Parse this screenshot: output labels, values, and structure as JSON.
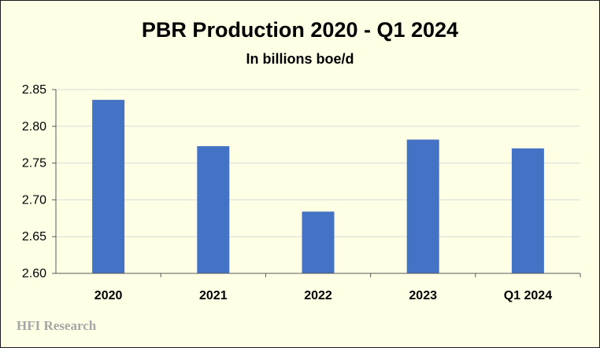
{
  "chart_data": {
    "type": "bar",
    "title": "PBR Production 2020 - Q1 2024",
    "subtitle": "In billions boe/d",
    "categories": [
      "2020",
      "2021",
      "2022",
      "2023",
      "Q1 2024"
    ],
    "values": [
      2.836,
      2.773,
      2.684,
      2.782,
      2.77
    ],
    "ylim": [
      2.6,
      2.85
    ],
    "yticks": [
      "2.60",
      "2.65",
      "2.70",
      "2.75",
      "2.80",
      "2.85"
    ],
    "xlabel": "",
    "ylabel": "",
    "grid": true,
    "legend": "none",
    "bar_color": "#4472c4",
    "grid_color": "#d9d9d9",
    "background_color": "#ffffe6"
  },
  "watermark": "HFI Research"
}
